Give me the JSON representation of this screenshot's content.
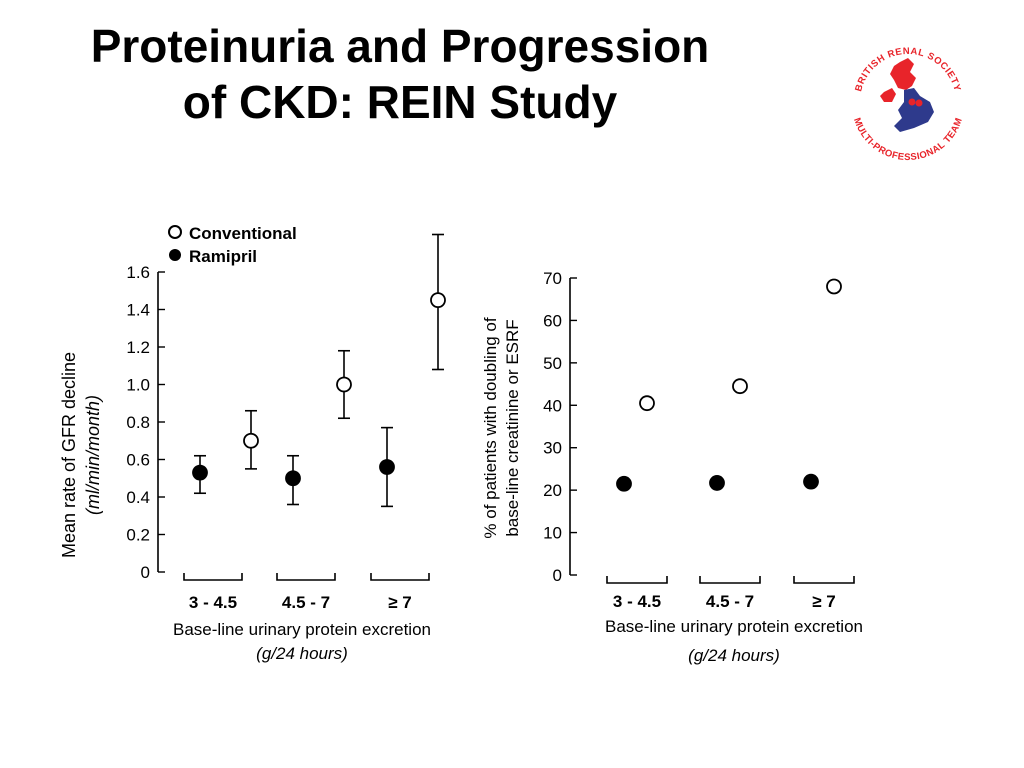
{
  "slide": {
    "title_line1": "Proteinuria and Progression",
    "title_line2": "of CKD: REIN Study"
  },
  "logo": {
    "text_top": "BRITISH RENAL SOCIETY",
    "text_bottom": "MULTI-PROFESSIONAL TEAM",
    "colors": {
      "red": "#e8242a",
      "blue": "#2e3a8c"
    }
  },
  "chart_data": [
    {
      "type": "scatter",
      "title": "",
      "xlabel": "Base-line urinary protein excretion",
      "xlabel_units": "(g/24 hours)",
      "ylabel": "Mean rate of GFR decline",
      "ylabel_units": "(ml/min/month)",
      "categories": [
        "3 - 4.5",
        "4.5 - 7",
        "≥ 7"
      ],
      "ylim": [
        0,
        1.6
      ],
      "yticks": [
        "0",
        "0.2",
        "0.4",
        "0.6",
        "0.8",
        "1.0",
        "1.2",
        "1.4",
        "1.6"
      ],
      "legend": {
        "position": "top-left",
        "entries": [
          "Conventional",
          "Ramipril"
        ]
      },
      "series": [
        {
          "name": "Conventional",
          "marker": "open-circle",
          "values": [
            0.7,
            1.0,
            1.45
          ],
          "err_low": [
            0.55,
            0.82,
            1.08
          ],
          "err_high": [
            0.86,
            1.18,
            1.8
          ]
        },
        {
          "name": "Ramipril",
          "marker": "filled-circle",
          "values": [
            0.53,
            0.5,
            0.56
          ],
          "err_low": [
            0.42,
            0.36,
            0.35
          ],
          "err_high": [
            0.62,
            0.62,
            0.77
          ]
        }
      ]
    },
    {
      "type": "scatter",
      "title": "",
      "xlabel": "Base-line urinary protein excretion",
      "xlabel_units": "(g/24 hours)",
      "ylabel": "% of patients with doubling of",
      "ylabel_line2": "base-line creatinine or ESRF",
      "categories": [
        "3 - 4.5",
        "4.5 - 7",
        "≥ 7"
      ],
      "ylim": [
        0,
        70
      ],
      "yticks": [
        "0",
        "10",
        "20",
        "30",
        "40",
        "50",
        "60",
        "70"
      ],
      "series": [
        {
          "name": "Conventional",
          "marker": "open-circle",
          "values": [
            40.5,
            44.5,
            68
          ]
        },
        {
          "name": "Ramipril",
          "marker": "filled-circle",
          "values": [
            21.5,
            21.7,
            22
          ]
        }
      ]
    }
  ]
}
